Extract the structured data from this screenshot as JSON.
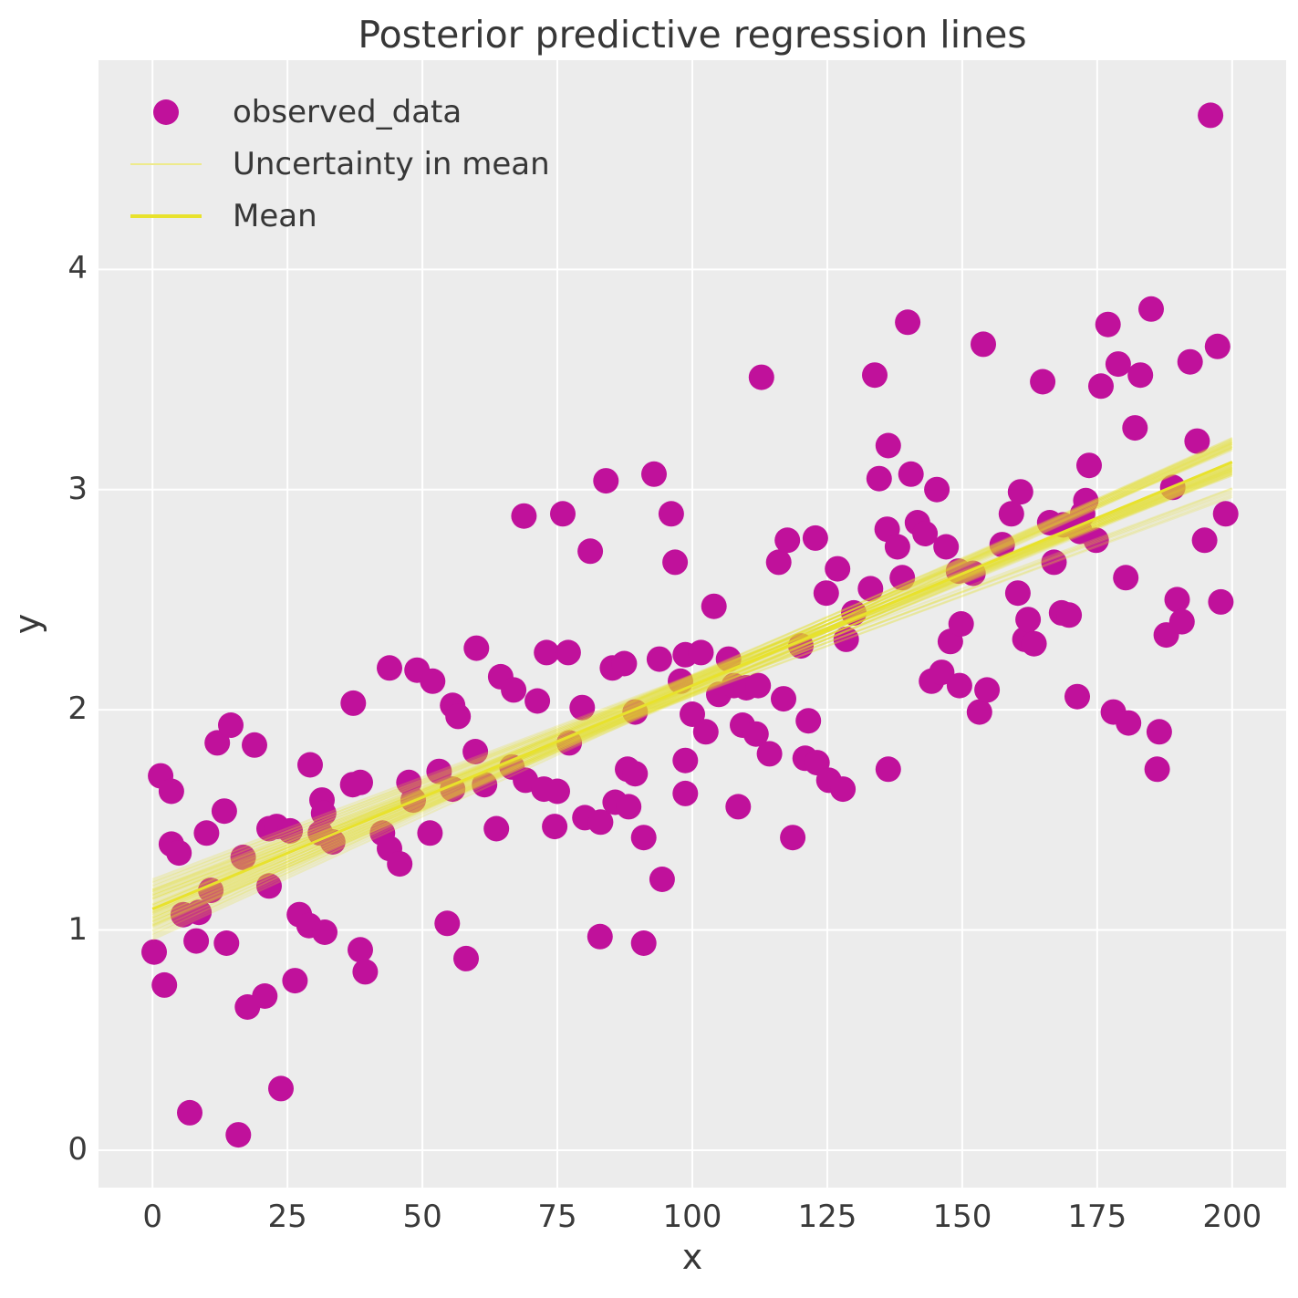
{
  "title": "Posterior predictive regression lines",
  "axes": {
    "xlabel": "x",
    "ylabel": "y",
    "x_ticks": [
      0,
      25,
      50,
      75,
      100,
      125,
      150,
      175,
      200
    ],
    "y_ticks": [
      0,
      1,
      2,
      3,
      4
    ],
    "x_range": [
      -10,
      210
    ],
    "y_range": [
      -0.17,
      4.95
    ],
    "grid": true
  },
  "legend": {
    "position": "upper-left",
    "items": [
      {
        "label": "observed_data",
        "marker": "dot",
        "color": "#c0119b"
      },
      {
        "label": "Uncertainty in mean",
        "marker": "line",
        "color": "#eeea8c"
      },
      {
        "label": "Mean",
        "marker": "line",
        "color": "#e8e22c"
      }
    ]
  },
  "colors": {
    "figure_bg": "#ffffff",
    "plot_bg": "#ececec",
    "grid": "#ffffff",
    "text": "#3a3a3a",
    "dot": "#c0119b",
    "uncertainty_line": "#e3dd26",
    "mean_line": "#e8e22c"
  },
  "chart_data": {
    "type": "scatter",
    "title": "Posterior predictive regression lines",
    "xlabel": "x",
    "ylabel": "y",
    "series": [
      {
        "name": "observed_data",
        "marker_radius": 14,
        "points": [
          [
            0.3,
            0.9
          ],
          [
            1.5,
            1.7
          ],
          [
            2.2,
            0.75
          ],
          [
            3.5,
            1.63
          ],
          [
            3.5,
            1.39
          ],
          [
            4.9,
            1.35
          ],
          [
            5.7,
            1.07
          ],
          [
            6.9,
            0.17
          ],
          [
            8.1,
            0.95
          ],
          [
            8.6,
            1.08
          ],
          [
            10.0,
            1.44
          ],
          [
            10.8,
            1.18
          ],
          [
            12.0,
            1.85
          ],
          [
            13.3,
            1.54
          ],
          [
            13.7,
            0.94
          ],
          [
            14.5,
            1.93
          ],
          [
            15.9,
            0.07
          ],
          [
            16.8,
            1.33
          ],
          [
            17.6,
            0.65
          ],
          [
            18.9,
            1.84
          ],
          [
            20.8,
            0.7
          ],
          [
            21.6,
            1.46
          ],
          [
            21.6,
            1.2
          ],
          [
            23.0,
            1.47
          ],
          [
            23.8,
            0.28
          ],
          [
            25.5,
            1.45
          ],
          [
            26.4,
            0.77
          ],
          [
            27.2,
            1.07
          ],
          [
            29.0,
            1.02
          ],
          [
            29.2,
            1.75
          ],
          [
            31.1,
            1.44
          ],
          [
            31.4,
            1.59
          ],
          [
            31.7,
            1.53
          ],
          [
            31.9,
            0.99
          ],
          [
            33.4,
            1.4
          ],
          [
            37.1,
            1.66
          ],
          [
            37.2,
            2.03
          ],
          [
            38.5,
            1.67
          ],
          [
            38.5,
            0.91
          ],
          [
            39.4,
            0.81
          ],
          [
            42.6,
            1.44
          ],
          [
            43.9,
            1.37
          ],
          [
            43.9,
            2.19
          ],
          [
            45.8,
            1.3
          ],
          [
            47.5,
            1.67
          ],
          [
            48.3,
            1.59
          ],
          [
            49.0,
            2.18
          ],
          [
            51.4,
            1.44
          ],
          [
            51.9,
            2.13
          ],
          [
            53.1,
            1.72
          ],
          [
            54.6,
            1.03
          ],
          [
            55.6,
            2.02
          ],
          [
            56.6,
            1.97
          ],
          [
            55.6,
            1.64
          ],
          [
            58.1,
            0.87
          ],
          [
            59.8,
            1.81
          ],
          [
            60.0,
            2.28
          ],
          [
            61.5,
            1.66
          ],
          [
            63.7,
            1.46
          ],
          [
            64.5,
            2.15
          ],
          [
            66.9,
            2.09
          ],
          [
            66.6,
            1.74
          ],
          [
            68.8,
            2.88
          ],
          [
            69.1,
            1.68
          ],
          [
            71.3,
            2.04
          ],
          [
            72.5,
            1.64
          ],
          [
            73.0,
            2.26
          ],
          [
            74.5,
            1.47
          ],
          [
            75.0,
            1.63
          ],
          [
            76.0,
            2.89
          ],
          [
            77.0,
            2.26
          ],
          [
            77.2,
            1.85
          ],
          [
            79.6,
            2.01
          ],
          [
            80.1,
            1.51
          ],
          [
            81.1,
            2.72
          ],
          [
            82.9,
            0.97
          ],
          [
            83.0,
            1.49
          ],
          [
            84.0,
            3.04
          ],
          [
            85.2,
            2.19
          ],
          [
            85.7,
            1.58
          ],
          [
            87.4,
            2.21
          ],
          [
            88.0,
            1.73
          ],
          [
            88.2,
            1.56
          ],
          [
            89.4,
            1.71
          ],
          [
            89.4,
            1.99
          ],
          [
            91.0,
            1.42
          ],
          [
            91.0,
            0.94
          ],
          [
            92.9,
            3.07
          ],
          [
            93.9,
            2.23
          ],
          [
            94.4,
            1.23
          ],
          [
            96.1,
            2.89
          ],
          [
            96.8,
            2.67
          ],
          [
            97.8,
            2.13
          ],
          [
            98.7,
            2.25
          ],
          [
            98.7,
            1.77
          ],
          [
            98.7,
            1.62
          ],
          [
            100.0,
            1.98
          ],
          [
            101.6,
            2.26
          ],
          [
            102.5,
            1.9
          ],
          [
            104.0,
            2.47
          ],
          [
            104.9,
            2.07
          ],
          [
            106.7,
            2.23
          ],
          [
            107.7,
            2.11
          ],
          [
            108.5,
            1.56
          ],
          [
            109.3,
            1.93
          ],
          [
            110.0,
            2.1
          ],
          [
            111.8,
            1.89
          ],
          [
            112.2,
            2.11
          ],
          [
            112.8,
            3.51
          ],
          [
            114.3,
            1.8
          ],
          [
            116.0,
            2.67
          ],
          [
            116.9,
            2.05
          ],
          [
            117.6,
            2.77
          ],
          [
            118.6,
            1.42
          ],
          [
            120.1,
            2.29
          ],
          [
            120.9,
            1.78
          ],
          [
            121.5,
            1.95
          ],
          [
            122.8,
            2.78
          ],
          [
            123.1,
            1.76
          ],
          [
            124.8,
            2.53
          ],
          [
            125.3,
            1.68
          ],
          [
            126.9,
            2.64
          ],
          [
            127.9,
            1.64
          ],
          [
            128.5,
            2.32
          ],
          [
            129.9,
            2.44
          ],
          [
            133.0,
            2.55
          ],
          [
            133.8,
            3.52
          ],
          [
            134.6,
            3.05
          ],
          [
            136.1,
            2.82
          ],
          [
            136.3,
            3.2
          ],
          [
            136.3,
            1.73
          ],
          [
            138.0,
            2.74
          ],
          [
            138.9,
            2.6
          ],
          [
            139.9,
            3.76
          ],
          [
            140.5,
            3.07
          ],
          [
            141.7,
            2.85
          ],
          [
            143.1,
            2.8
          ],
          [
            144.3,
            2.13
          ],
          [
            145.3,
            3.0
          ],
          [
            146.2,
            2.17
          ],
          [
            147.0,
            2.74
          ],
          [
            147.8,
            2.31
          ],
          [
            149.3,
            2.63
          ],
          [
            149.5,
            2.11
          ],
          [
            149.8,
            2.39
          ],
          [
            152.0,
            2.62
          ],
          [
            153.2,
            1.99
          ],
          [
            153.9,
            3.66
          ],
          [
            154.6,
            2.09
          ],
          [
            157.4,
            2.75
          ],
          [
            159.1,
            2.89
          ],
          [
            160.3,
            2.53
          ],
          [
            160.8,
            2.99
          ],
          [
            161.6,
            2.32
          ],
          [
            162.2,
            2.41
          ],
          [
            163.3,
            2.3
          ],
          [
            164.9,
            3.49
          ],
          [
            166.2,
            2.85
          ],
          [
            167.0,
            2.67
          ],
          [
            168.4,
            2.44
          ],
          [
            168.7,
            2.84
          ],
          [
            169.8,
            2.43
          ],
          [
            171.3,
            2.06
          ],
          [
            171.8,
            2.81
          ],
          [
            172.3,
            2.89
          ],
          [
            172.9,
            2.95
          ],
          [
            173.5,
            3.11
          ],
          [
            174.8,
            2.77
          ],
          [
            175.7,
            3.47
          ],
          [
            177.0,
            3.75
          ],
          [
            178.0,
            1.99
          ],
          [
            178.9,
            3.57
          ],
          [
            180.3,
            2.6
          ],
          [
            180.8,
            1.94
          ],
          [
            182.0,
            3.28
          ],
          [
            183.0,
            3.52
          ],
          [
            185.0,
            3.82
          ],
          [
            186.1,
            1.73
          ],
          [
            186.5,
            1.9
          ],
          [
            187.8,
            2.34
          ],
          [
            189.0,
            3.01
          ],
          [
            189.8,
            2.5
          ],
          [
            190.7,
            2.4
          ],
          [
            192.2,
            3.58
          ],
          [
            193.5,
            3.22
          ],
          [
            194.9,
            2.77
          ],
          [
            196.0,
            4.7
          ],
          [
            197.3,
            3.65
          ],
          [
            197.9,
            2.49
          ],
          [
            198.8,
            2.89
          ]
        ]
      }
    ],
    "mean_line": {
      "name": "Mean",
      "slope": 0.01015,
      "intercept": 1.095,
      "x_start": 0,
      "x_end": 200
    },
    "uncertainty_lines": {
      "name": "Uncertainty in mean",
      "count": 55,
      "x_start": 0,
      "x_end": 200,
      "pivot_x": 97,
      "pivot_y_center": 2.08,
      "pivot_y_spread": 0.05,
      "slope_center": 0.01015,
      "slope_spread": 0.00115,
      "opacity": 0.22
    }
  }
}
